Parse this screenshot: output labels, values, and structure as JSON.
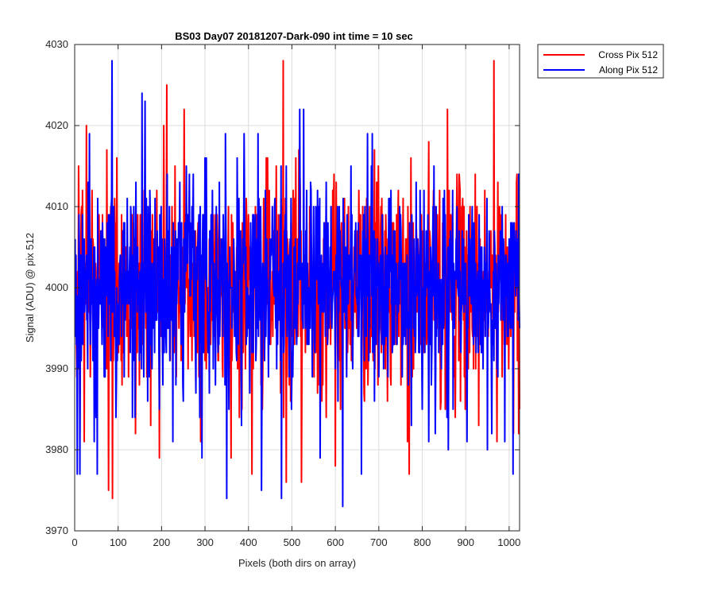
{
  "chart_data": {
    "type": "line",
    "title": "BS03 Day07 20181207-Dark-090 int time = 10 sec",
    "xlabel": "Pixels (both dirs on array)",
    "ylabel": "Signal (ADU) @ pix 512",
    "xlim": [
      0,
      1024
    ],
    "ylim": [
      3970,
      4030
    ],
    "xticks": [
      0,
      100,
      200,
      300,
      400,
      500,
      600,
      700,
      800,
      900,
      1000
    ],
    "yticks": [
      3970,
      3980,
      3990,
      4000,
      4010,
      4020,
      4030
    ],
    "grid": true,
    "legend_position": "outside top-right",
    "series": [
      {
        "name": "Cross Pix 512",
        "color": "#ff0000",
        "mean": 4000,
        "x_range": [
          1,
          1024
        ],
        "samples": [
          {
            "x": 1,
            "y": 4003
          },
          {
            "x": 5,
            "y": 3989
          },
          {
            "x": 9,
            "y": 4015
          },
          {
            "x": 12,
            "y": 3982
          },
          {
            "x": 18,
            "y": 4012
          },
          {
            "x": 22,
            "y": 3981
          },
          {
            "x": 27,
            "y": 4020
          },
          {
            "x": 40,
            "y": 4012
          },
          {
            "x": 74,
            "y": 4017
          },
          {
            "x": 78,
            "y": 3975
          },
          {
            "x": 87,
            "y": 3974
          },
          {
            "x": 97,
            "y": 4016
          },
          {
            "x": 112,
            "y": 3992
          },
          {
            "x": 140,
            "y": 3982
          },
          {
            "x": 160,
            "y": 4012
          },
          {
            "x": 205,
            "y": 4020
          },
          {
            "x": 212,
            "y": 4025
          },
          {
            "x": 252,
            "y": 4022
          },
          {
            "x": 290,
            "y": 3981
          },
          {
            "x": 385,
            "y": 3985
          },
          {
            "x": 408,
            "y": 3977
          },
          {
            "x": 441,
            "y": 4016
          },
          {
            "x": 480,
            "y": 4028
          },
          {
            "x": 487,
            "y": 3976
          },
          {
            "x": 516,
            "y": 4017
          },
          {
            "x": 522,
            "y": 3976
          },
          {
            "x": 600,
            "y": 3978
          },
          {
            "x": 621,
            "y": 4011
          },
          {
            "x": 690,
            "y": 4017
          },
          {
            "x": 720,
            "y": 3986
          },
          {
            "x": 770,
            "y": 3977
          },
          {
            "x": 840,
            "y": 4012
          },
          {
            "x": 858,
            "y": 4022
          },
          {
            "x": 930,
            "y": 3983
          },
          {
            "x": 965,
            "y": 4028
          },
          {
            "x": 972,
            "y": 3981
          },
          {
            "x": 1010,
            "y": 3982
          },
          {
            "x": 1018,
            "y": 4014
          },
          {
            "x": 1024,
            "y": 3985
          }
        ]
      },
      {
        "name": "Along Pix 512",
        "color": "#0000ff",
        "mean": 4000,
        "x_range": [
          1,
          1024
        ],
        "samples": [
          {
            "x": 1,
            "y": 4006
          },
          {
            "x": 6,
            "y": 3977
          },
          {
            "x": 12,
            "y": 3977
          },
          {
            "x": 30,
            "y": 3990
          },
          {
            "x": 45,
            "y": 3981
          },
          {
            "x": 52,
            "y": 3977
          },
          {
            "x": 86,
            "y": 4028
          },
          {
            "x": 95,
            "y": 3984
          },
          {
            "x": 155,
            "y": 4024
          },
          {
            "x": 162,
            "y": 4023
          },
          {
            "x": 195,
            "y": 3985
          },
          {
            "x": 250,
            "y": 3986
          },
          {
            "x": 300,
            "y": 4016
          },
          {
            "x": 350,
            "y": 3974
          },
          {
            "x": 355,
            "y": 3985
          },
          {
            "x": 383,
            "y": 3990
          },
          {
            "x": 390,
            "y": 4019
          },
          {
            "x": 430,
            "y": 3975
          },
          {
            "x": 476,
            "y": 3974
          },
          {
            "x": 518,
            "y": 4022
          },
          {
            "x": 527,
            "y": 4022
          },
          {
            "x": 565,
            "y": 3979
          },
          {
            "x": 617,
            "y": 3973
          },
          {
            "x": 660,
            "y": 3977
          },
          {
            "x": 700,
            "y": 3989
          },
          {
            "x": 736,
            "y": 3993
          },
          {
            "x": 775,
            "y": 3983
          },
          {
            "x": 815,
            "y": 3981
          },
          {
            "x": 860,
            "y": 3980
          },
          {
            "x": 903,
            "y": 3981
          },
          {
            "x": 950,
            "y": 3980
          },
          {
            "x": 990,
            "y": 3981
          },
          {
            "x": 1009,
            "y": 3977
          },
          {
            "x": 1022,
            "y": 4014
          }
        ]
      }
    ]
  }
}
